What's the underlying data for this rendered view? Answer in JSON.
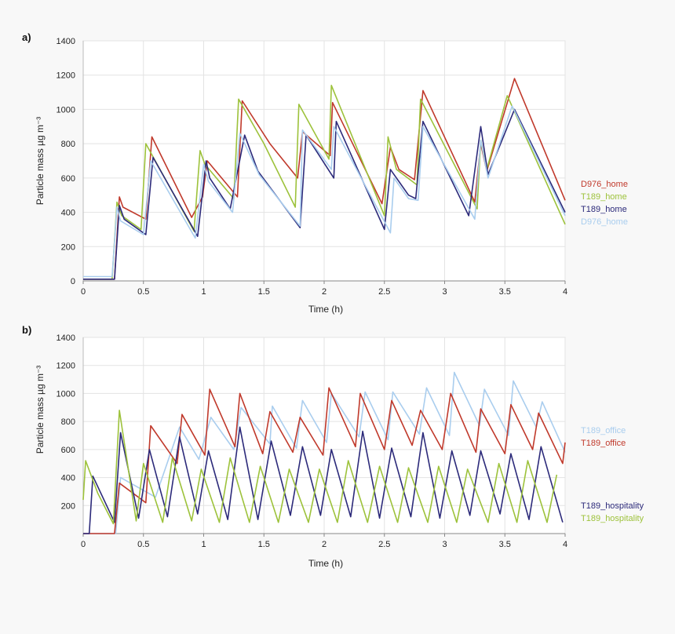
{
  "colors": {
    "D976_home": "#c0392b",
    "T189_home_green": "#9dc23b",
    "T189_home_navy": "#2c2a7a",
    "D976_home_light": "#a9cdee",
    "T189_office_light": "#a9cdee",
    "T189_office_red": "#c0392b",
    "T189_hospitality_navy": "#2c2a7a",
    "T189_hospitality_green": "#9dc23b"
  },
  "chart_data": [
    {
      "panel_label": "a)",
      "type": "line",
      "xlabel": "Time (h)",
      "ylabel": "Particle mass µg m⁻³",
      "xlim": [
        0,
        4
      ],
      "ylim": [
        0,
        1400
      ],
      "x_ticks": [
        0,
        0.5,
        1,
        1.5,
        2,
        2.5,
        3,
        3.5,
        4
      ],
      "x_tick_labels": [
        "0",
        "0.5",
        "1",
        "1.5",
        "2",
        "2.5",
        "3",
        "3.5",
        "4"
      ],
      "y_ticks": [
        0,
        200,
        400,
        600,
        800,
        1000,
        1200,
        1400
      ],
      "y_tick_labels": [
        "0",
        "200",
        "400",
        "600",
        "800",
        "1000",
        "1200",
        "1400"
      ],
      "grid": true,
      "legend_position": "right",
      "series": [
        {
          "name": "D976_home",
          "color": "#c0392b",
          "x": [
            0,
            0.26,
            0.3,
            0.33,
            0.52,
            0.57,
            0.9,
            0.99,
            1.03,
            1.28,
            1.32,
            1.55,
            1.78,
            1.82,
            2.05,
            2.07,
            2.48,
            2.55,
            2.62,
            2.75,
            2.82,
            3.25,
            3.3,
            3.35,
            3.58,
            4.0
          ],
          "y": [
            10,
            10,
            490,
            430,
            360,
            840,
            370,
            490,
            700,
            490,
            1050,
            800,
            600,
            870,
            730,
            1040,
            450,
            780,
            650,
            590,
            1110,
            460,
            800,
            640,
            1180,
            470
          ]
        },
        {
          "name": "T189_home",
          "color": "#9dc23b",
          "x": [
            0,
            0.24,
            0.28,
            0.32,
            0.48,
            0.52,
            0.92,
            0.97,
            1.01,
            1.25,
            1.29,
            1.5,
            1.76,
            1.79,
            2.04,
            2.06,
            2.5,
            2.53,
            2.6,
            2.77,
            2.8,
            3.27,
            3.3,
            3.35,
            3.52,
            4.0
          ],
          "y": [
            10,
            10,
            460,
            380,
            300,
            800,
            290,
            760,
            680,
            480,
            1060,
            800,
            430,
            1030,
            710,
            1140,
            380,
            840,
            650,
            560,
            1060,
            420,
            820,
            650,
            1080,
            330
          ]
        },
        {
          "name": "T189_home",
          "color": "#2c2a7a",
          "x": [
            0,
            0.26,
            0.3,
            0.34,
            0.52,
            0.58,
            0.95,
            1.02,
            1.05,
            1.22,
            1.34,
            1.45,
            1.8,
            1.85,
            2.08,
            2.1,
            2.5,
            2.55,
            2.7,
            2.76,
            2.82,
            3.2,
            3.3,
            3.36,
            3.58,
            4.0
          ],
          "y": [
            10,
            10,
            440,
            360,
            270,
            720,
            260,
            700,
            600,
            420,
            850,
            640,
            310,
            850,
            600,
            930,
            300,
            650,
            500,
            480,
            930,
            380,
            900,
            620,
            1000,
            400
          ]
        },
        {
          "name": "D976_home",
          "color": "#a9cdee",
          "x": [
            0,
            0.24,
            0.28,
            0.31,
            0.5,
            0.56,
            0.93,
            1.0,
            1.04,
            1.24,
            1.3,
            1.46,
            1.8,
            1.82,
            2.06,
            2.08,
            2.55,
            2.58,
            2.7,
            2.78,
            2.82,
            3.25,
            3.3,
            3.36,
            3.56,
            4.0
          ],
          "y": [
            25,
            25,
            430,
            350,
            270,
            700,
            250,
            680,
            580,
            400,
            860,
            620,
            320,
            880,
            650,
            900,
            280,
            600,
            480,
            470,
            900,
            360,
            820,
            600,
            1020,
            380
          ]
        }
      ],
      "legend": [
        {
          "label": "D976_home",
          "color": "#c0392b"
        },
        {
          "label": "T189_home",
          "color": "#9dc23b"
        },
        {
          "label": "T189_home",
          "color": "#2c2a7a"
        },
        {
          "label": "D976_home",
          "color": "#a9cdee"
        }
      ]
    },
    {
      "panel_label": "b)",
      "type": "line",
      "xlabel": "Time (h)",
      "ylabel": "Particle mass µg m⁻³",
      "xlim": [
        0,
        4
      ],
      "ylim": [
        0,
        1400
      ],
      "x_ticks": [
        0,
        0.5,
        1,
        1.5,
        2,
        2.5,
        3,
        3.5,
        4
      ],
      "x_tick_labels": [
        "0",
        "0.5",
        "1",
        "1.5",
        "2",
        "2.5",
        "3",
        "3.5",
        "4"
      ],
      "y_ticks": [
        200,
        400,
        600,
        800,
        1000,
        1200,
        1400
      ],
      "y_tick_labels": [
        "200",
        "400",
        "600",
        "800",
        "1000",
        "1200",
        "1400"
      ],
      "grid": true,
      "legend_position": "right",
      "series": [
        {
          "name": "T189_office",
          "color": "#a9cdee",
          "x": [
            0,
            0.27,
            0.31,
            0.6,
            0.8,
            0.96,
            1.06,
            1.25,
            1.31,
            1.55,
            1.57,
            1.77,
            1.82,
            2.02,
            2.06,
            2.29,
            2.34,
            2.53,
            2.57,
            2.79,
            2.85,
            3.04,
            3.08,
            3.29,
            3.33,
            3.53,
            3.57,
            3.76,
            3.81,
            4.0
          ],
          "y": [
            0,
            0,
            400,
            260,
            760,
            530,
            830,
            600,
            900,
            640,
            910,
            610,
            950,
            650,
            1000,
            690,
            1010,
            670,
            1010,
            710,
            1040,
            700,
            1150,
            770,
            1030,
            700,
            1090,
            760,
            940,
            580
          ]
        },
        {
          "name": "T189_office",
          "color": "#c0392b",
          "x": [
            0,
            0.26,
            0.3,
            0.52,
            0.56,
            0.78,
            0.82,
            1.01,
            1.05,
            1.26,
            1.3,
            1.49,
            1.55,
            1.74,
            1.8,
            1.99,
            2.04,
            2.26,
            2.3,
            2.5,
            2.56,
            2.73,
            2.8,
            2.98,
            3.05,
            3.26,
            3.3,
            3.5,
            3.55,
            3.73,
            3.78,
            3.98,
            4.0
          ],
          "y": [
            0,
            0,
            360,
            220,
            770,
            500,
            850,
            560,
            1030,
            620,
            1000,
            570,
            870,
            580,
            830,
            560,
            1040,
            620,
            1000,
            600,
            950,
            630,
            880,
            600,
            1000,
            580,
            890,
            570,
            920,
            600,
            860,
            500,
            650
          ]
        },
        {
          "name": "T189_hospitality",
          "color": "#2c2a7a",
          "x": [
            0,
            0.05,
            0.08,
            0.26,
            0.31,
            0.46,
            0.55,
            0.7,
            0.8,
            0.95,
            1.04,
            1.2,
            1.3,
            1.45,
            1.56,
            1.72,
            1.82,
            1.97,
            2.06,
            2.22,
            2.32,
            2.46,
            2.56,
            2.72,
            2.82,
            2.96,
            3.06,
            3.21,
            3.3,
            3.46,
            3.55,
            3.7,
            3.8,
            3.98
          ],
          "y": [
            0,
            0,
            410,
            80,
            720,
            110,
            600,
            120,
            690,
            140,
            590,
            100,
            760,
            100,
            660,
            130,
            620,
            130,
            600,
            120,
            730,
            110,
            610,
            120,
            720,
            110,
            590,
            130,
            590,
            140,
            570,
            100,
            620,
            80
          ]
        },
        {
          "name": "T189_hospitality",
          "color": "#9dc23b",
          "x": [
            0,
            0.02,
            0.12,
            0.25,
            0.3,
            0.44,
            0.5,
            0.66,
            0.74,
            0.9,
            0.98,
            1.13,
            1.22,
            1.38,
            1.47,
            1.62,
            1.71,
            1.87,
            1.96,
            2.11,
            2.2,
            2.36,
            2.46,
            2.61,
            2.7,
            2.86,
            2.95,
            3.1,
            3.19,
            3.36,
            3.45,
            3.6,
            3.69,
            3.85,
            3.93
          ],
          "y": [
            240,
            520,
            290,
            70,
            880,
            90,
            500,
            80,
            540,
            90,
            460,
            80,
            540,
            80,
            480,
            80,
            460,
            80,
            460,
            80,
            520,
            80,
            480,
            80,
            470,
            80,
            480,
            80,
            460,
            80,
            500,
            80,
            520,
            80,
            420
          ]
        }
      ],
      "legend": [
        {
          "label": "T189_office",
          "color": "#a9cdee"
        },
        {
          "label": "T189_office",
          "color": "#c0392b"
        },
        {
          "label": "T189_hospitality",
          "color": "#2c2a7a"
        },
        {
          "label": "T189_hospitality",
          "color": "#9dc23b"
        }
      ]
    }
  ]
}
